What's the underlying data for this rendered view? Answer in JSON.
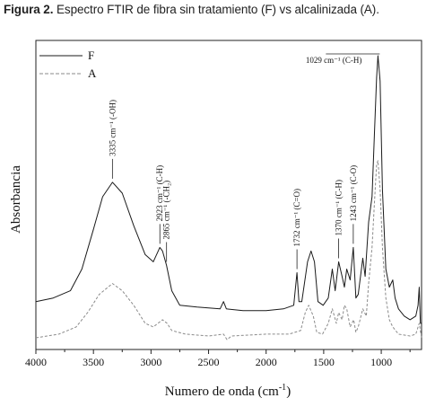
{
  "caption": {
    "label": "Figura 2.",
    "text": "Espectro FTIR de fibra sin tratamiento (F) vs alcalinizada (A)."
  },
  "chart_data": {
    "type": "line",
    "title": "",
    "xlabel": "Numero de onda (cm",
    "xlabel_sup": "-1",
    "xlabel_close": ")",
    "ylabel": "Absorbancia",
    "xlim": [
      4000,
      650
    ],
    "x_reversed": true,
    "xticks": [
      4000,
      3500,
      3000,
      2500,
      2000,
      1500,
      1000
    ],
    "ylim": [
      0,
      1
    ],
    "y_ticks_shown": false,
    "grid": false,
    "legend_position": "top-left",
    "colors": {
      "F": "#1a1a1a",
      "A": "#8a8a8a"
    },
    "series": [
      {
        "name": "F",
        "style": "solid",
        "points": [
          [
            4000,
            0.11
          ],
          [
            3850,
            0.12
          ],
          [
            3700,
            0.14
          ],
          [
            3600,
            0.2
          ],
          [
            3500,
            0.31
          ],
          [
            3420,
            0.4
          ],
          [
            3335,
            0.44
          ],
          [
            3250,
            0.41
          ],
          [
            3150,
            0.32
          ],
          [
            3050,
            0.24
          ],
          [
            2980,
            0.22
          ],
          [
            2923,
            0.26
          ],
          [
            2900,
            0.25
          ],
          [
            2865,
            0.21
          ],
          [
            2820,
            0.14
          ],
          [
            2750,
            0.1
          ],
          [
            2600,
            0.095
          ],
          [
            2400,
            0.09
          ],
          [
            2370,
            0.11
          ],
          [
            2345,
            0.09
          ],
          [
            2200,
            0.085
          ],
          [
            2000,
            0.085
          ],
          [
            1850,
            0.09
          ],
          [
            1760,
            0.1
          ],
          [
            1732,
            0.19
          ],
          [
            1715,
            0.11
          ],
          [
            1690,
            0.11
          ],
          [
            1640,
            0.22
          ],
          [
            1610,
            0.25
          ],
          [
            1580,
            0.22
          ],
          [
            1550,
            0.11
          ],
          [
            1505,
            0.1
          ],
          [
            1460,
            0.12
          ],
          [
            1425,
            0.2
          ],
          [
            1400,
            0.14
          ],
          [
            1370,
            0.22
          ],
          [
            1340,
            0.18
          ],
          [
            1320,
            0.15
          ],
          [
            1300,
            0.2
          ],
          [
            1270,
            0.17
          ],
          [
            1243,
            0.26
          ],
          [
            1220,
            0.12
          ],
          [
            1200,
            0.13
          ],
          [
            1160,
            0.23
          ],
          [
            1140,
            0.18
          ],
          [
            1110,
            0.33
          ],
          [
            1080,
            0.4
          ],
          [
            1060,
            0.57
          ],
          [
            1040,
            0.73
          ],
          [
            1029,
            0.79
          ],
          [
            1010,
            0.72
          ],
          [
            990,
            0.42
          ],
          [
            960,
            0.2
          ],
          [
            930,
            0.15
          ],
          [
            900,
            0.17
          ],
          [
            880,
            0.12
          ],
          [
            850,
            0.09
          ],
          [
            800,
            0.07
          ],
          [
            750,
            0.06
          ],
          [
            700,
            0.07
          ],
          [
            680,
            0.1
          ],
          [
            670,
            0.15
          ],
          [
            660,
            0.05
          ],
          [
            650,
            0.05
          ]
        ]
      },
      {
        "name": "A",
        "style": "dashed",
        "points": [
          [
            4000,
            0.01
          ],
          [
            3800,
            0.02
          ],
          [
            3650,
            0.04
          ],
          [
            3550,
            0.08
          ],
          [
            3450,
            0.13
          ],
          [
            3335,
            0.16
          ],
          [
            3250,
            0.14
          ],
          [
            3150,
            0.1
          ],
          [
            3050,
            0.05
          ],
          [
            2980,
            0.04
          ],
          [
            2900,
            0.06
          ],
          [
            2860,
            0.05
          ],
          [
            2820,
            0.03
          ],
          [
            2700,
            0.02
          ],
          [
            2500,
            0.015
          ],
          [
            2370,
            0.02
          ],
          [
            2340,
            0.005
          ],
          [
            2300,
            0.015
          ],
          [
            2000,
            0.02
          ],
          [
            1800,
            0.02
          ],
          [
            1700,
            0.03
          ],
          [
            1660,
            0.08
          ],
          [
            1630,
            0.1
          ],
          [
            1590,
            0.07
          ],
          [
            1560,
            0.025
          ],
          [
            1510,
            0.02
          ],
          [
            1460,
            0.05
          ],
          [
            1425,
            0.09
          ],
          [
            1390,
            0.05
          ],
          [
            1370,
            0.08
          ],
          [
            1340,
            0.06
          ],
          [
            1320,
            0.1
          ],
          [
            1300,
            0.09
          ],
          [
            1270,
            0.04
          ],
          [
            1240,
            0.06
          ],
          [
            1220,
            0.025
          ],
          [
            1200,
            0.04
          ],
          [
            1160,
            0.09
          ],
          [
            1130,
            0.07
          ],
          [
            1110,
            0.16
          ],
          [
            1080,
            0.26
          ],
          [
            1060,
            0.38
          ],
          [
            1040,
            0.49
          ],
          [
            1029,
            0.5
          ],
          [
            1010,
            0.42
          ],
          [
            990,
            0.26
          ],
          [
            960,
            0.12
          ],
          [
            930,
            0.06
          ],
          [
            900,
            0.04
          ],
          [
            850,
            0.02
          ],
          [
            750,
            0.015
          ],
          [
            700,
            0.02
          ],
          [
            670,
            0.05
          ],
          [
            650,
            0.01
          ]
        ]
      }
    ],
    "annotations": [
      {
        "x": 3335,
        "text": "3335 cm⁻¹ (-OH)",
        "orientation": "vertical"
      },
      {
        "x": 2923,
        "text": "2923 cm⁻¹ (C-H)",
        "orientation": "vertical"
      },
      {
        "x": 2865,
        "text": "2865 cm⁻¹ (-CH₂)",
        "orientation": "vertical"
      },
      {
        "x": 1732,
        "text": "1732 cm⁻¹ (C=O)",
        "orientation": "vertical"
      },
      {
        "x": 1370,
        "text": "1370 cm⁻¹ (C-H)",
        "orientation": "vertical"
      },
      {
        "x": 1243,
        "text": "1243 cm⁻¹ (C-O)",
        "orientation": "vertical"
      },
      {
        "x": 1029,
        "text": "1029 cm⁻¹ (C-H)",
        "orientation": "horizontal"
      }
    ]
  }
}
